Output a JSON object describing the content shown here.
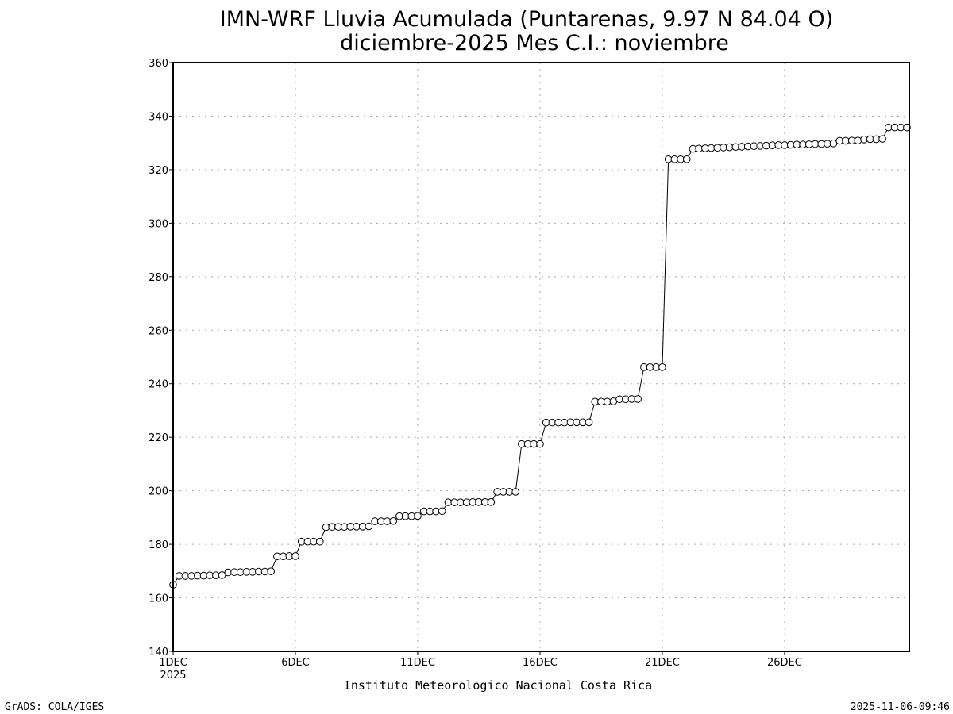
{
  "chart_data": {
    "type": "line",
    "title": "IMN-WRF  Lluvia Acumulada (Puntarenas, 9.97  N 84.04  O)",
    "subtitle": "diciembre-2025 Mes C.I.: noviembre",
    "xlabel": "Instituto Meteorologico Nacional Costa Rica",
    "ylabel": "",
    "x_start_day": 1,
    "x_step_days": 0.25,
    "xlim": [
      1,
      31.1
    ],
    "ylim": [
      140,
      360
    ],
    "yticks": [
      140,
      160,
      180,
      200,
      220,
      240,
      260,
      280,
      300,
      320,
      340,
      360
    ],
    "xticks": [
      {
        "day": 1,
        "label": "1DEC",
        "sublabel": "2025"
      },
      {
        "day": 6,
        "label": "6DEC"
      },
      {
        "day": 11,
        "label": "11DEC"
      },
      {
        "day": 16,
        "label": "16DEC"
      },
      {
        "day": 21,
        "label": "21DEC"
      },
      {
        "day": 26,
        "label": "26DEC"
      }
    ],
    "grid": true,
    "marker": "open-circle",
    "series": [
      {
        "name": "Lluvia Acumulada",
        "values": [
          164.9,
          168.2,
          168.2,
          168.2,
          168.3,
          168.3,
          168.4,
          168.4,
          168.5,
          169.5,
          169.6,
          169.6,
          169.7,
          169.7,
          169.8,
          169.8,
          169.9,
          175.5,
          175.5,
          175.6,
          175.6,
          181.0,
          181.0,
          181.0,
          181.0,
          186.4,
          186.5,
          186.5,
          186.5,
          186.6,
          186.6,
          186.6,
          186.7,
          188.6,
          188.6,
          188.6,
          188.7,
          190.5,
          190.5,
          190.5,
          190.6,
          192.3,
          192.3,
          192.3,
          192.4,
          195.7,
          195.7,
          195.7,
          195.7,
          195.8,
          195.8,
          195.8,
          195.8,
          199.6,
          199.6,
          199.6,
          199.6,
          217.5,
          217.5,
          217.5,
          217.5,
          225.5,
          225.5,
          225.5,
          225.5,
          225.6,
          225.6,
          225.6,
          225.6,
          233.3,
          233.3,
          233.3,
          233.4,
          234.2,
          234.2,
          234.3,
          234.3,
          246.2,
          246.2,
          246.2,
          246.2,
          323.9,
          323.9,
          323.9,
          323.9,
          327.8,
          327.9,
          328.0,
          328.1,
          328.2,
          328.3,
          328.4,
          328.5,
          328.6,
          328.7,
          328.8,
          328.9,
          329.0,
          329.1,
          329.2,
          329.2,
          329.3,
          329.4,
          329.4,
          329.5,
          329.6,
          329.6,
          329.7,
          329.8,
          330.8,
          330.8,
          330.9,
          330.9,
          331.3,
          331.4,
          331.4,
          331.5,
          335.8,
          335.8,
          335.8,
          335.8
        ]
      }
    ]
  },
  "footer": {
    "left": "GrADS: COLA/IGES",
    "right": "2025-11-06-09:46"
  }
}
